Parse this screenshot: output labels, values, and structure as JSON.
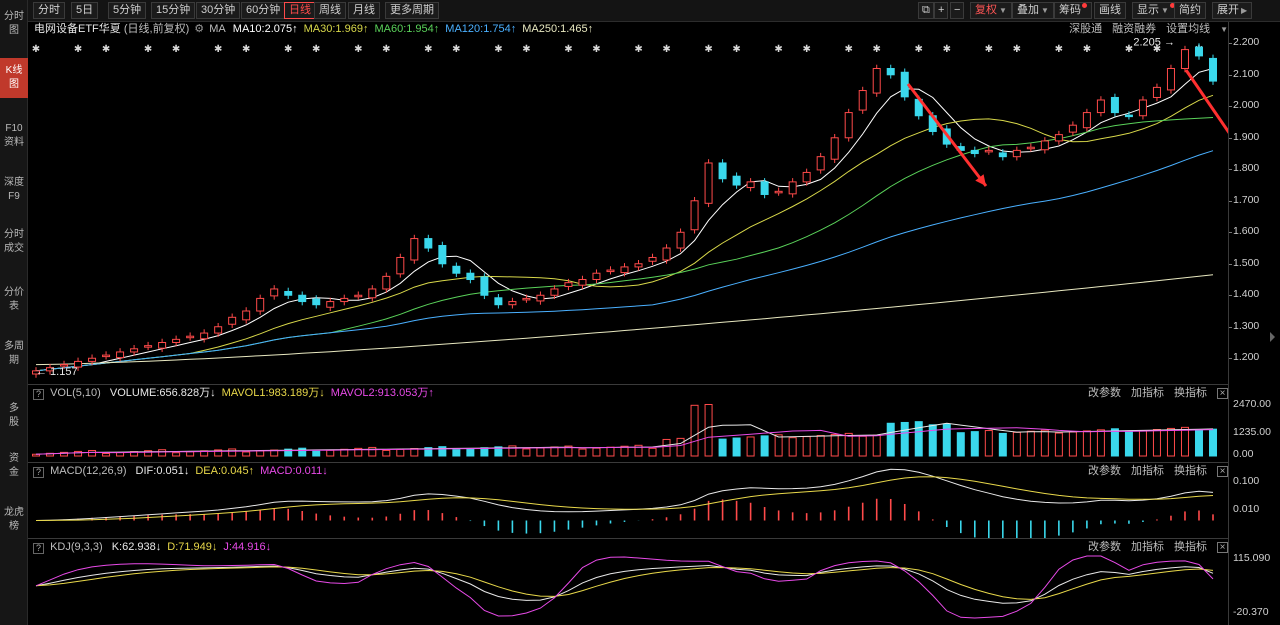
{
  "left_tabs": [
    {
      "line1": "分时",
      "line2": "图",
      "active": false
    },
    {
      "line1": "K线",
      "line2": "图",
      "active": true
    },
    {
      "line1": "F10",
      "line2": "资料",
      "active": false
    },
    {
      "line1": "深度",
      "line2": "F9",
      "active": false
    },
    {
      "line1": "分时",
      "line2": "成交",
      "active": false
    },
    {
      "line1": "分价",
      "line2": "表",
      "active": false
    },
    {
      "line1": "多周",
      "line2": "期",
      "active": false
    },
    {
      "line1": "多",
      "line2": "股",
      "active": false
    },
    {
      "line1": "资",
      "line2": "金",
      "active": false
    },
    {
      "line1": "龙虎",
      "line2": "榜",
      "active": false
    }
  ],
  "toolbar": {
    "periods": [
      "分时",
      "5日",
      "5分钟",
      "15分钟",
      "30分钟",
      "60分钟",
      "日线",
      "周线",
      "月线",
      "更多周期"
    ],
    "active_period": "日线",
    "right_buttons": [
      "复权",
      "叠加",
      "筹码",
      "画线",
      "显示",
      "简约",
      "展开"
    ]
  },
  "main_panel": {
    "title": "电网设备ETF华夏",
    "subtitle": "(日线,前复权)",
    "ma_label": "MA",
    "ma": [
      {
        "name": "MA10",
        "value": "2.075",
        "arrow": "↑"
      },
      {
        "name": "MA30",
        "value": "1.969",
        "arrow": "↑"
      },
      {
        "name": "MA60",
        "value": "1.954",
        "arrow": "↑"
      },
      {
        "name": "MA120",
        "value": "1.754",
        "arrow": "↑"
      },
      {
        "name": "MA250",
        "value": "1.465",
        "arrow": "↑"
      }
    ],
    "links": [
      "深股通",
      "融资融券",
      "设置均线"
    ],
    "high_label": "2.205",
    "low_label": "1.157"
  },
  "vol_panel": {
    "name": "VOL(5,10)",
    "items": [
      {
        "label": "VOLUME:656.828万",
        "arrow": "↓"
      },
      {
        "label": "MAVOL1:983.189万",
        "arrow": "↓"
      },
      {
        "label": "MAVOL2:913.053万",
        "arrow": "↑"
      }
    ],
    "links": [
      "改参数",
      "加指标",
      "换指标"
    ]
  },
  "macd_panel": {
    "name": "MACD(12,26,9)",
    "items": [
      {
        "label": "DIF:0.051",
        "arrow": "↓"
      },
      {
        "label": "DEA:0.045",
        "arrow": "↑"
      },
      {
        "label": "MACD:0.011",
        "arrow": "↓"
      }
    ],
    "links": [
      "改参数",
      "加指标",
      "换指标"
    ]
  },
  "kdj_panel": {
    "name": "KDJ(9,3,3)",
    "items": [
      {
        "label": "K:62.938",
        "arrow": "↓"
      },
      {
        "label": "D:71.949",
        "arrow": "↓"
      },
      {
        "label": "J:44.916",
        "arrow": "↓"
      }
    ],
    "links": [
      "改参数",
      "加指标",
      "换指标"
    ]
  },
  "axis": {
    "price": [
      "2.200",
      "2.100",
      "2.000",
      "1.900",
      "1.800",
      "1.700",
      "1.600",
      "1.500",
      "1.400",
      "1.300",
      "1.200"
    ],
    "vol": [
      "2470.00",
      "1235.00",
      "0.00"
    ],
    "macd": [
      "0.100",
      "0.010"
    ],
    "kdj": [
      "115.090",
      "-20.370"
    ]
  },
  "chart_data": {
    "type": "candlestick",
    "series": "电网设备ETF华夏",
    "price_range": [
      1.15,
      2.22
    ],
    "closes": [
      1.16,
      1.17,
      1.18,
      1.19,
      1.2,
      1.21,
      1.22,
      1.23,
      1.24,
      1.25,
      1.26,
      1.27,
      1.28,
      1.3,
      1.33,
      1.35,
      1.39,
      1.42,
      1.4,
      1.38,
      1.37,
      1.38,
      1.39,
      1.4,
      1.42,
      1.46,
      1.52,
      1.58,
      1.55,
      1.5,
      1.47,
      1.45,
      1.4,
      1.37,
      1.38,
      1.39,
      1.4,
      1.42,
      1.44,
      1.45,
      1.47,
      1.48,
      1.49,
      1.5,
      1.52,
      1.55,
      1.6,
      1.7,
      1.82,
      1.77,
      1.75,
      1.76,
      1.72,
      1.73,
      1.76,
      1.79,
      1.84,
      1.9,
      1.98,
      2.05,
      2.12,
      2.1,
      2.03,
      1.97,
      1.92,
      1.88,
      1.86,
      1.85,
      1.86,
      1.84,
      1.86,
      1.87,
      1.89,
      1.91,
      1.94,
      1.98,
      2.02,
      1.98,
      1.97,
      2.02,
      2.06,
      2.12,
      2.18,
      2.16,
      2.08
    ],
    "ma_current": {
      "MA10": 2.075,
      "MA30": 1.969,
      "MA60": 1.954,
      "MA120": 1.754,
      "MA250": 1.465
    },
    "high": 2.205,
    "low": 1.157,
    "volume_range": [
      0,
      2470
    ],
    "macd_range": [
      -0.04,
      0.12
    ],
    "kdj_range": [
      -20.37,
      115.09
    ]
  }
}
